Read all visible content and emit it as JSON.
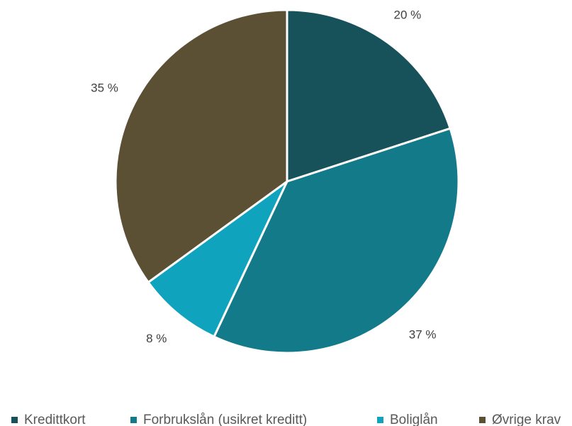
{
  "chart_data": {
    "type": "pie",
    "categories": [
      "Kredittkort",
      "Forbrukslån (usikret kreditt)",
      "Boliglån",
      "Øvrige krav"
    ],
    "values": [
      20,
      37,
      8,
      35
    ],
    "value_labels": [
      "20 %",
      "37 %",
      "8 %",
      "35 %"
    ],
    "colors": [
      "#17525b",
      "#137a8a",
      "#10a3bd",
      "#5b5033"
    ],
    "legend": "bottom"
  }
}
